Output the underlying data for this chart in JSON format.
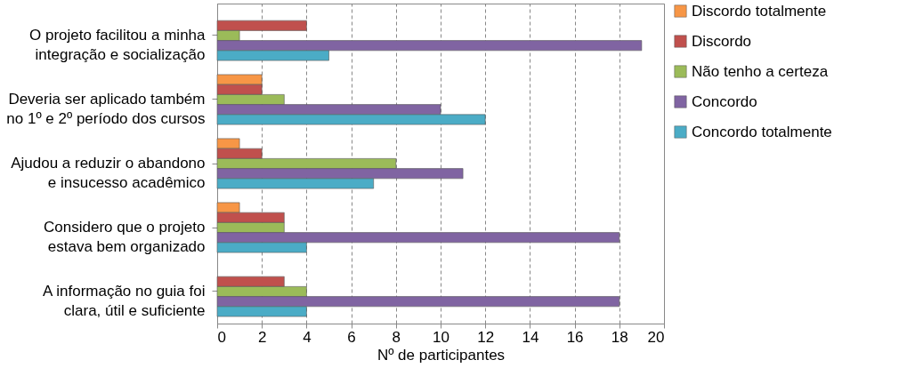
{
  "chart_data": {
    "type": "bar",
    "orientation": "horizontal",
    "xlabel": "Nº de participantes",
    "categories": [
      "O projeto facilitou a minha integração e socialização",
      "Deveria ser aplicado também no 1º e 2º período dos cursos",
      "Ajudou a reduzir o abandono e insucesso acadêmico",
      "Considero que o projeto estava bem organizado",
      "A informação no guia foi clara, útil e suficiente"
    ],
    "series": [
      {
        "name": "Discordo totalmente",
        "color": "#f79646",
        "values": [
          0,
          2,
          1,
          1,
          0
        ]
      },
      {
        "name": "Discordo",
        "color": "#c0504d",
        "values": [
          4,
          2,
          2,
          3,
          3
        ]
      },
      {
        "name": "Não tenho a certeza",
        "color": "#9bbb59",
        "values": [
          1,
          3,
          8,
          3,
          4
        ]
      },
      {
        "name": "Concordo",
        "color": "#8064a2",
        "values": [
          19,
          10,
          11,
          18,
          18
        ]
      },
      {
        "name": "Concordo totalmente",
        "color": "#4bacc6",
        "values": [
          5,
          12,
          7,
          4,
          4
        ]
      }
    ],
    "xlim": [
      0,
      20
    ],
    "xticks": [
      0,
      2,
      4,
      6,
      8,
      10,
      12,
      14,
      16,
      18,
      20
    ],
    "grid": "x",
    "legend": "right"
  }
}
